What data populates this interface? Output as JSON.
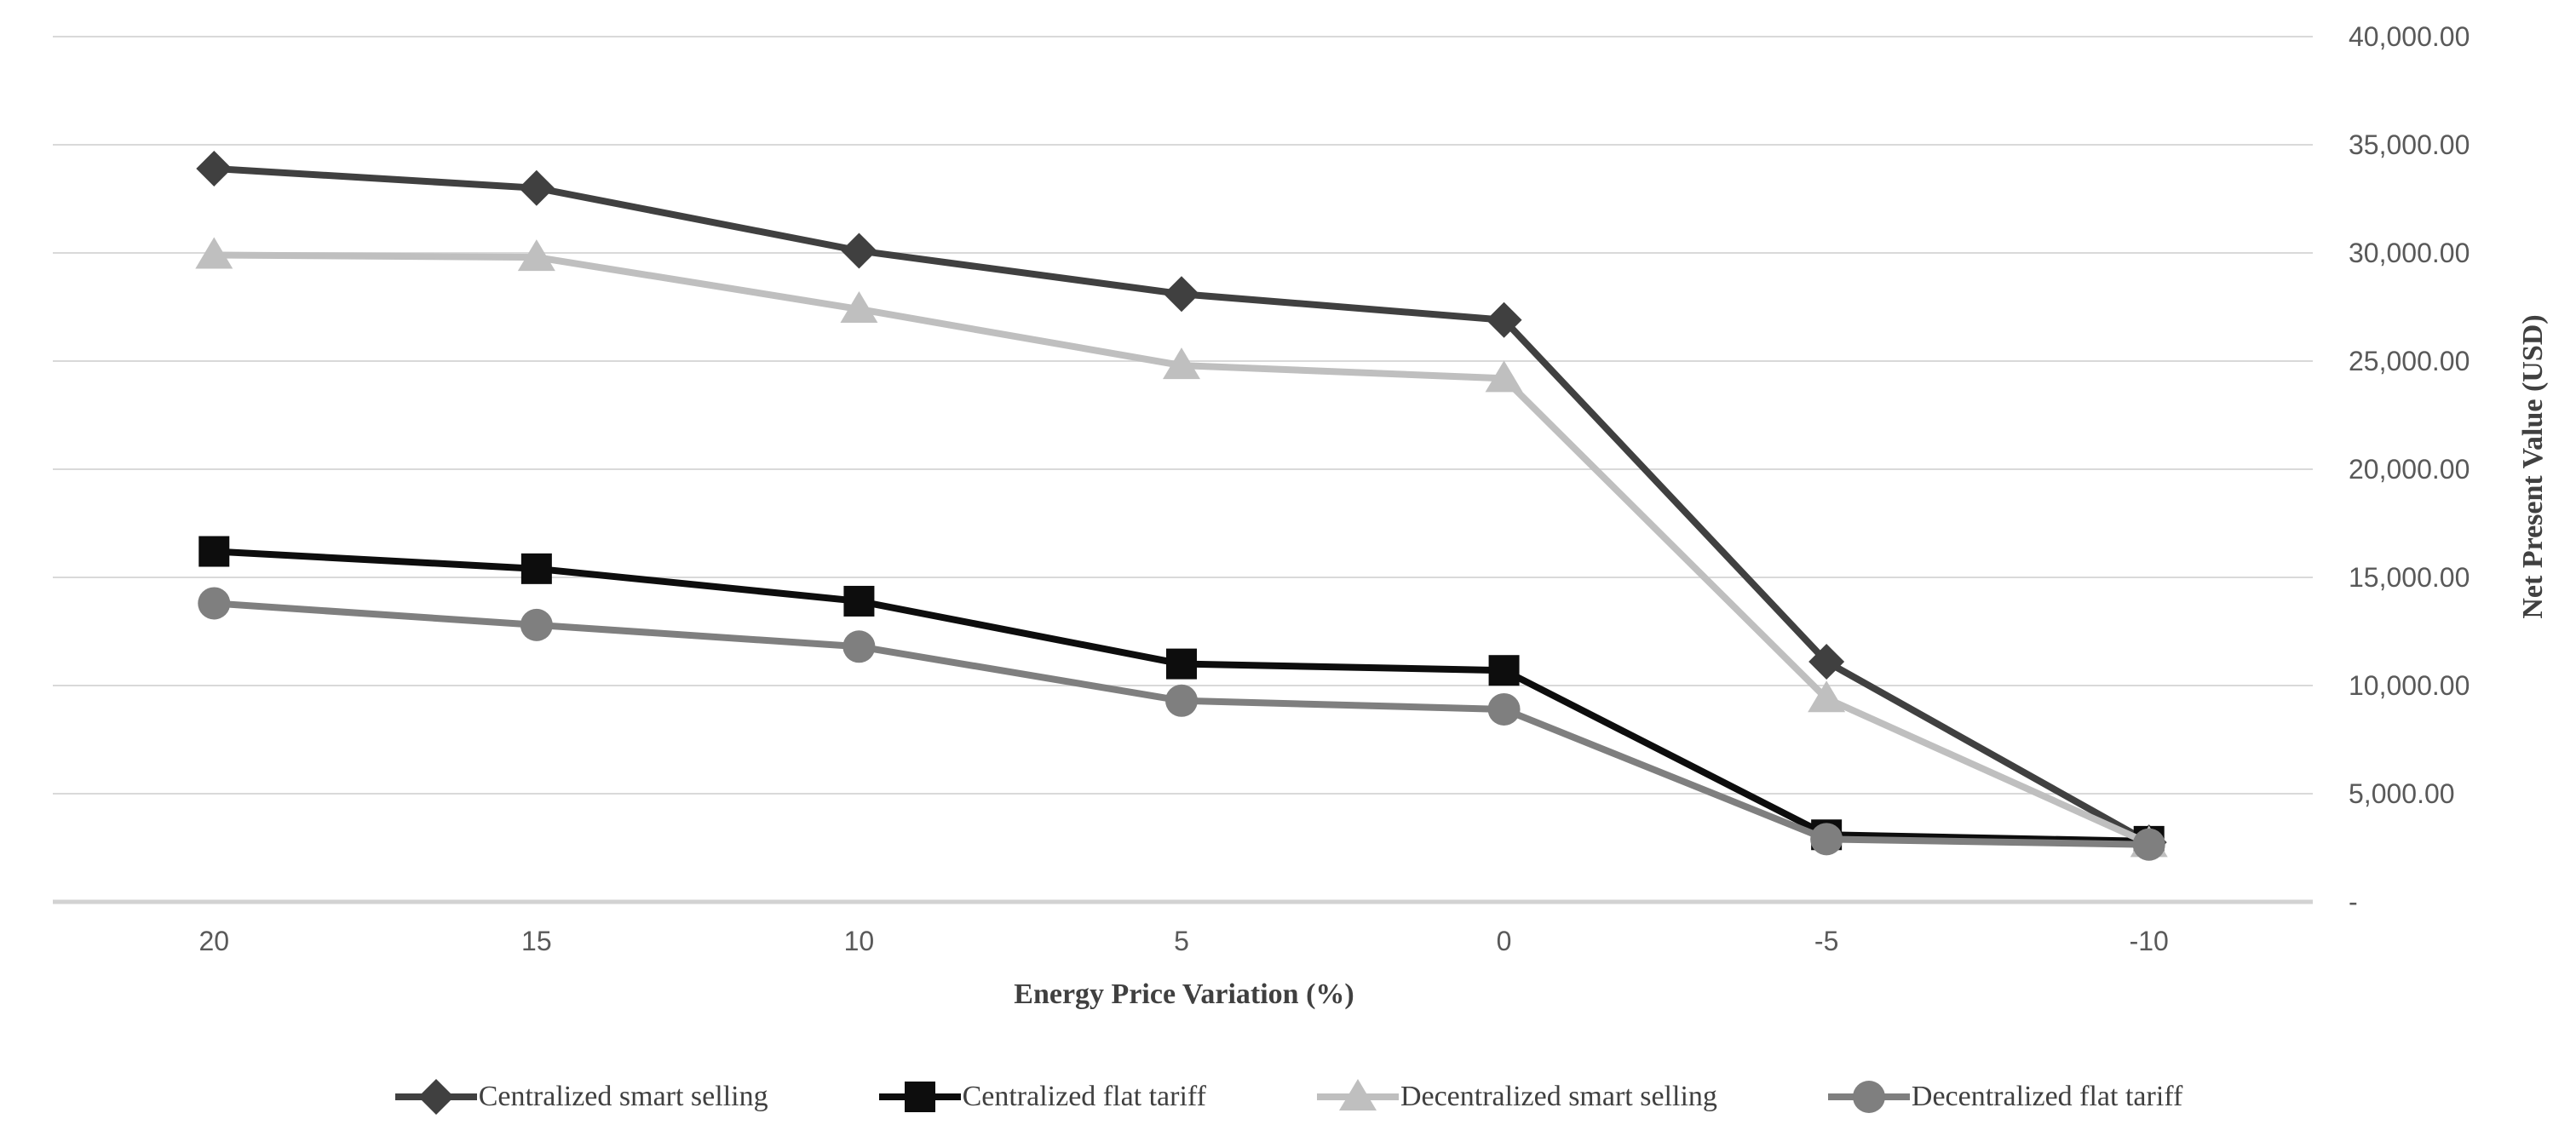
{
  "colors": {
    "background": "#ffffff",
    "gridline": "#d9d9d9",
    "axis_line": "#d2d2d2",
    "tick_label": "#595959",
    "axis_title": "#404040",
    "legend_text": "#404040"
  },
  "chart_data": {
    "type": "line",
    "title": "",
    "xlabel": "Energy Price Variation (%)",
    "ylabel": "Net Present Value (USD)",
    "categories": [
      "20",
      "15",
      "10",
      "5",
      "0",
      "-5",
      "-10"
    ],
    "x_values": [
      20,
      15,
      10,
      5,
      0,
      -5,
      -10
    ],
    "ylim": [
      0,
      40000
    ],
    "y_ticks": [
      0,
      5000,
      10000,
      15000,
      20000,
      25000,
      30000,
      35000,
      40000
    ],
    "y_tick_labels": [
      "-",
      "5,000.00",
      "10,000.00",
      "15,000.00",
      "20,000.00",
      "25,000.00",
      "30,000.00",
      "35,000.00",
      "40,000.00"
    ],
    "grid": "horizontal",
    "legend_position": "bottom",
    "series": [
      {
        "name": "Centralized smart selling",
        "marker": "diamond",
        "color": "#404040",
        "values": [
          33900,
          33000,
          30100,
          28100,
          26900,
          11100,
          2750
        ]
      },
      {
        "name": "Centralized flat tariff",
        "marker": "square",
        "color": "#0d0d0d",
        "values": [
          16200,
          15400,
          13900,
          11000,
          10700,
          3100,
          2800
        ]
      },
      {
        "name": "Decentralized smart selling",
        "marker": "triangle",
        "color": "#bfbfbf",
        "values": [
          29900,
          29800,
          27400,
          24800,
          24200,
          9400,
          2700
        ]
      },
      {
        "name": "Decentralized flat tariff",
        "marker": "circle",
        "color": "#7f7f7f",
        "values": [
          13800,
          12800,
          11800,
          9300,
          8900,
          2900,
          2650
        ]
      }
    ]
  }
}
